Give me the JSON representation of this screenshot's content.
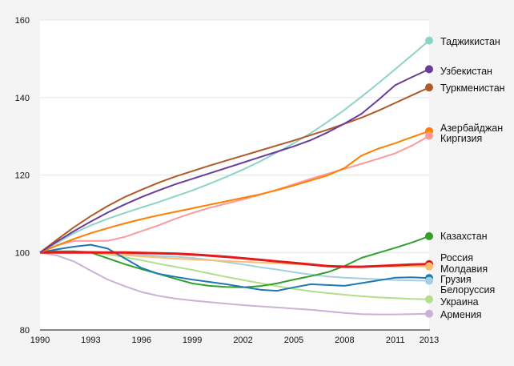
{
  "chart_data": {
    "type": "line",
    "title": "",
    "xlabel": "",
    "ylabel": "",
    "ylim": [
      80,
      160
    ],
    "xlim": [
      1990,
      2013
    ],
    "y_ticks": [
      "80",
      "100",
      "120",
      "140",
      "160"
    ],
    "x_ticks": [
      "1990",
      "1993",
      "1996",
      "1999",
      "2002",
      "2005",
      "2008",
      "2011",
      "2013"
    ],
    "grid": "horizontal",
    "legend_placement": "right, at line ends",
    "x": [
      1990,
      1991,
      1992,
      1993,
      1994,
      1995,
      1996,
      1997,
      1998,
      1999,
      2000,
      2001,
      2002,
      2003,
      2004,
      2005,
      2006,
      2007,
      2008,
      2009,
      2010,
      2011,
      2012,
      2013
    ],
    "series": [
      {
        "name": "Таджикистан",
        "color": "#8dd3c7",
        "values": [
          100,
          102.5,
          105,
          107,
          108.7,
          110.2,
          111.6,
          113,
          114.5,
          116,
          117.7,
          119.5,
          121.4,
          123.5,
          125.8,
          128.2,
          130.8,
          133.7,
          136.8,
          140.2,
          143.7,
          147.3,
          151,
          154.7
        ]
      },
      {
        "name": "Узбекистан",
        "color": "#6a3d9a",
        "values": [
          100,
          102.8,
          105.5,
          108,
          110.3,
          112.4,
          114.3,
          116,
          117.6,
          119,
          120.4,
          121.8,
          123.2,
          124.6,
          126,
          127.4,
          129,
          131,
          133.3,
          135.8,
          139.4,
          143.2,
          145.3,
          147.3
        ]
      },
      {
        "name": "Туркменистан",
        "color": "#b15928",
        "values": [
          100,
          103.3,
          106.5,
          109.4,
          112,
          114.3,
          116.2,
          118,
          119.6,
          121,
          122.4,
          123.7,
          125,
          126.3,
          127.6,
          128.9,
          130.3,
          131.7,
          133.2,
          134.8,
          136.6,
          138.6,
          140.6,
          142.6
        ]
      },
      {
        "name": "Азербайджан",
        "color": "#ff7f00",
        "values": [
          100,
          101.8,
          103.5,
          105,
          106.3,
          107.5,
          108.6,
          109.6,
          110.5,
          111.4,
          112.3,
          113.2,
          114.1,
          115,
          116.1,
          117.3,
          118.6,
          119.9,
          121.8,
          125,
          126.8,
          128.2,
          129.8,
          131.3
        ]
      },
      {
        "name": "Киргизия",
        "color": "#fb9a99",
        "values": [
          100,
          101.8,
          103,
          103,
          103,
          104,
          105.5,
          107,
          108.7,
          110.2,
          111.5,
          112.6,
          113.7,
          114.9,
          116.2,
          117.6,
          119,
          120.3,
          121.6,
          122.9,
          124.2,
          125.6,
          127.6,
          130.1
        ]
      },
      {
        "name": "Казахстан",
        "color": "#33a02c",
        "values": [
          100,
          100.3,
          100.3,
          100,
          98.5,
          97,
          95.7,
          94.5,
          93.2,
          92,
          91.4,
          91.1,
          91,
          91.3,
          92,
          93,
          93.9,
          94.9,
          96.5,
          98.6,
          99.9,
          101.2,
          102.6,
          104.2
        ]
      },
      {
        "name": "Россия",
        "color": "#e31a1c",
        "values": [
          100,
          100,
          100,
          100,
          100,
          100,
          99.9,
          99.8,
          99.7,
          99.5,
          99.2,
          98.9,
          98.5,
          98.1,
          97.7,
          97.3,
          96.9,
          96.5,
          96.3,
          96.3,
          96.5,
          96.7,
          96.9,
          97
        ]
      },
      {
        "name": "Молдавия",
        "color": "#fdbf6f",
        "values": [
          100,
          100,
          100,
          100.1,
          99.7,
          99.3,
          99,
          98.7,
          98.4,
          98.2,
          98,
          97.8,
          97.6,
          97.4,
          97.2,
          97,
          96.8,
          96.6,
          96.5,
          96.4,
          96.4,
          96.4,
          96.4,
          96.4
        ]
      },
      {
        "name": "Грузия",
        "color": "#1f78b4",
        "values": [
          100,
          100.8,
          101.5,
          102,
          101,
          98.5,
          96,
          94.5,
          93.7,
          93,
          92.4,
          91.8,
          91.1,
          90.4,
          90.1,
          91,
          91.8,
          91.6,
          91.4,
          92.1,
          92.8,
          93.5,
          93.6,
          93.4
        ]
      },
      {
        "name": "Белоруссия",
        "color": "#a6cee3",
        "values": [
          100,
          100.2,
          100.3,
          100.2,
          100,
          99.7,
          99.4,
          99.1,
          98.9,
          98.6,
          98.1,
          97.5,
          96.9,
          96.2,
          95.6,
          94.9,
          94.3,
          93.8,
          93.5,
          93.3,
          93.1,
          92.9,
          92.8,
          92.7
        ]
      },
      {
        "name": "Украина",
        "color": "#b2df8a",
        "values": [
          100,
          100.1,
          100.2,
          100,
          99.5,
          98.8,
          98,
          97.1,
          96.3,
          95.5,
          94.6,
          93.7,
          92.9,
          92.1,
          91.3,
          90.6,
          90,
          89.5,
          89.1,
          88.7,
          88.4,
          88.2,
          88,
          87.9
        ]
      },
      {
        "name": "Армения",
        "color": "#cab2d6",
        "values": [
          100,
          99.2,
          97.7,
          95.3,
          93,
          91.3,
          89.8,
          88.8,
          88.1,
          87.6,
          87.2,
          86.8,
          86.4,
          86.1,
          85.8,
          85.5,
          85.2,
          84.8,
          84.4,
          84.1,
          84,
          84,
          84.1,
          84.2
        ]
      }
    ]
  }
}
